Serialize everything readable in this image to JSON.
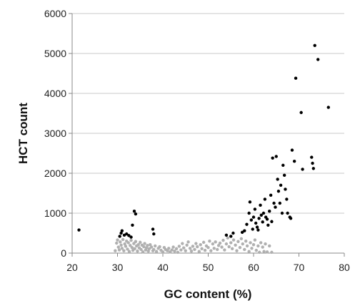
{
  "chart_data": {
    "type": "scatter",
    "xlabel": "GC content (%)",
    "ylabel": "HCT count",
    "xlim": [
      20,
      80
    ],
    "ylim": [
      0,
      6000
    ],
    "x_ticks": [
      20,
      30,
      40,
      50,
      60,
      70,
      80
    ],
    "y_ticks": [
      0,
      1000,
      2000,
      3000,
      4000,
      5000,
      6000
    ],
    "grid": "horizontal",
    "legend": "none",
    "series": [
      {
        "color": "#000000",
        "points": [
          [
            21.5,
            580
          ],
          [
            30.5,
            420
          ],
          [
            30.8,
            500
          ],
          [
            31.0,
            560
          ],
          [
            31.5,
            450
          ],
          [
            32.0,
            480
          ],
          [
            32.5,
            440
          ],
          [
            33.0,
            400
          ],
          [
            33.3,
            700
          ],
          [
            33.7,
            1050
          ],
          [
            34.0,
            980
          ],
          [
            37.8,
            600
          ],
          [
            38.0,
            480
          ],
          [
            54.0,
            450
          ],
          [
            55.0,
            420
          ],
          [
            55.5,
            500
          ],
          [
            57.5,
            520
          ],
          [
            58.0,
            560
          ],
          [
            58.5,
            720
          ],
          [
            59.0,
            1000
          ],
          [
            59.2,
            1280
          ],
          [
            59.5,
            830
          ],
          [
            59.8,
            600
          ],
          [
            60.0,
            900
          ],
          [
            60.3,
            1100
          ],
          [
            60.5,
            750
          ],
          [
            60.8,
            650
          ],
          [
            61.0,
            580
          ],
          [
            61.2,
            870
          ],
          [
            61.5,
            1200
          ],
          [
            61.7,
            950
          ],
          [
            62.0,
            780
          ],
          [
            62.2,
            1000
          ],
          [
            62.5,
            1350
          ],
          [
            62.7,
            900
          ],
          [
            63.0,
            850
          ],
          [
            63.2,
            700
          ],
          [
            63.5,
            1050
          ],
          [
            63.8,
            1450
          ],
          [
            64.0,
            790
          ],
          [
            64.2,
            2380
          ],
          [
            64.5,
            1250
          ],
          [
            64.8,
            1150
          ],
          [
            65.0,
            2420
          ],
          [
            65.3,
            1850
          ],
          [
            65.5,
            1550
          ],
          [
            65.8,
            1250
          ],
          [
            66.0,
            1700
          ],
          [
            66.3,
            1000
          ],
          [
            66.5,
            2200
          ],
          [
            66.8,
            1950
          ],
          [
            67.0,
            1600
          ],
          [
            67.3,
            1350
          ],
          [
            67.5,
            1000
          ],
          [
            68.0,
            900
          ],
          [
            68.2,
            870
          ],
          [
            68.5,
            2580
          ],
          [
            69.0,
            2300
          ],
          [
            69.3,
            4380
          ],
          [
            70.5,
            3520
          ],
          [
            70.8,
            2100
          ],
          [
            72.8,
            2400
          ],
          [
            73.0,
            2250
          ],
          [
            73.2,
            2120
          ],
          [
            73.5,
            5200
          ],
          [
            74.2,
            4850
          ],
          [
            76.5,
            3650
          ]
        ]
      },
      {
        "color": "#b0b0b0",
        "points": [
          [
            29.5,
            60
          ],
          [
            29.8,
            250
          ],
          [
            30.0,
            330
          ],
          [
            30.2,
            150
          ],
          [
            30.4,
            80
          ],
          [
            30.6,
            280
          ],
          [
            30.8,
            200
          ],
          [
            31.0,
            120
          ],
          [
            31.2,
            340
          ],
          [
            31.4,
            60
          ],
          [
            31.6,
            230
          ],
          [
            31.8,
            170
          ],
          [
            32.0,
            300
          ],
          [
            32.2,
            100
          ],
          [
            32.4,
            260
          ],
          [
            32.6,
            40
          ],
          [
            32.8,
            190
          ],
          [
            33.0,
            320
          ],
          [
            33.2,
            140
          ],
          [
            33.4,
            70
          ],
          [
            33.6,
            240
          ],
          [
            33.8,
            110
          ],
          [
            34.0,
            290
          ],
          [
            34.2,
            180
          ],
          [
            34.4,
            50
          ],
          [
            34.6,
            210
          ],
          [
            34.8,
            130
          ],
          [
            35.0,
            270
          ],
          [
            35.2,
            90
          ],
          [
            35.4,
            200
          ],
          [
            35.6,
            30
          ],
          [
            35.8,
            160
          ],
          [
            36.0,
            240
          ],
          [
            36.2,
            80
          ],
          [
            36.4,
            130
          ],
          [
            36.6,
            190
          ],
          [
            36.8,
            50
          ],
          [
            37.0,
            110
          ],
          [
            37.2,
            210
          ],
          [
            37.5,
            150
          ],
          [
            37.8,
            60
          ],
          [
            38.0,
            90
          ],
          [
            38.3,
            180
          ],
          [
            38.6,
            40
          ],
          [
            39.0,
            120
          ],
          [
            39.3,
            160
          ],
          [
            39.6,
            70
          ],
          [
            40.0,
            30
          ],
          [
            40.3,
            140
          ],
          [
            40.6,
            90
          ],
          [
            41.0,
            60
          ],
          [
            41.3,
            120
          ],
          [
            41.6,
            30
          ],
          [
            42.0,
            80
          ],
          [
            42.3,
            150
          ],
          [
            42.6,
            50
          ],
          [
            43.0,
            110
          ],
          [
            43.3,
            20
          ],
          [
            43.6,
            170
          ],
          [
            44.0,
            80
          ],
          [
            44.3,
            240
          ],
          [
            44.6,
            130
          ],
          [
            45.0,
            60
          ],
          [
            45.3,
            200
          ],
          [
            45.6,
            280
          ],
          [
            46.0,
            120
          ],
          [
            46.3,
            50
          ],
          [
            46.6,
            170
          ],
          [
            47.0,
            90
          ],
          [
            47.3,
            240
          ],
          [
            47.6,
            160
          ],
          [
            48.0,
            40
          ],
          [
            48.3,
            210
          ],
          [
            48.6,
            110
          ],
          [
            49.0,
            270
          ],
          [
            49.3,
            70
          ],
          [
            49.6,
            180
          ],
          [
            50.0,
            140
          ],
          [
            50.3,
            300
          ],
          [
            50.6,
            60
          ],
          [
            51.0,
            230
          ],
          [
            51.3,
            120
          ],
          [
            51.6,
            280
          ],
          [
            52.0,
            90
          ],
          [
            52.3,
            190
          ],
          [
            52.6,
            250
          ],
          [
            53.0,
            150
          ],
          [
            53.3,
            320
          ],
          [
            53.6,
            80
          ],
          [
            54.0,
            230
          ],
          [
            54.3,
            380
          ],
          [
            54.6,
            160
          ],
          [
            55.0,
            260
          ],
          [
            55.3,
            110
          ],
          [
            55.6,
            330
          ],
          [
            56.0,
            200
          ],
          [
            56.3,
            60
          ],
          [
            56.6,
            290
          ],
          [
            57.0,
            140
          ],
          [
            57.3,
            360
          ],
          [
            57.6,
            230
          ],
          [
            58.0,
            90
          ],
          [
            58.3,
            300
          ],
          [
            58.6,
            180
          ],
          [
            59.0,
            40
          ],
          [
            59.3,
            260
          ],
          [
            59.6,
            120
          ],
          [
            60.0,
            210
          ],
          [
            60.3,
            330
          ],
          [
            60.6,
            70
          ],
          [
            61.0,
            180
          ],
          [
            61.3,
            20
          ],
          [
            61.6,
            260
          ],
          [
            62.0,
            150
          ],
          [
            62.3,
            40
          ],
          [
            62.6,
            230
          ],
          [
            63.0,
            30
          ],
          [
            63.5,
            180
          ],
          [
            64.0,
            20
          ]
        ]
      }
    ]
  }
}
